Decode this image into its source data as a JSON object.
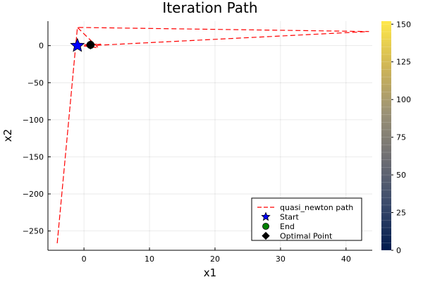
{
  "chart_data": {
    "type": "line",
    "title": "Iteration Path",
    "xlabel": "x1",
    "ylabel": "x2",
    "xlim": [
      -5.5,
      44
    ],
    "ylim": [
      -276,
      33
    ],
    "xticks": [
      0,
      10,
      20,
      30,
      40
    ],
    "yticks": [
      0,
      -50,
      -100,
      -150,
      -200,
      -250
    ],
    "grid": true,
    "legend_position": "bottom-right",
    "series": [
      {
        "name": "quasi_newton path",
        "style": "dashed",
        "color": "#ff0000",
        "x": [
          -1.2,
          2.2,
          -1.0,
          -4.1,
          -1.0,
          43.5,
          0.0,
          2.6,
          -1.2
        ],
        "y": [
          1.0,
          -3.0,
          24.5,
          -268.0,
          24.5,
          19.0,
          -0.5,
          2.0,
          1.0
        ]
      }
    ],
    "markers": [
      {
        "name": "Start",
        "shape": "star",
        "color": "#0000ff",
        "x": -1.0,
        "y": 0.0
      },
      {
        "name": "End",
        "shape": "circle",
        "color": "#008000",
        "x": 1.0,
        "y": 1.0
      },
      {
        "name": "Optimal Point",
        "shape": "diamond",
        "color": "#000000",
        "x": 1.0,
        "y": 1.0
      }
    ],
    "colorbar": {
      "ticks": [
        0,
        25,
        50,
        75,
        100,
        125,
        150
      ],
      "range": [
        0,
        152
      ],
      "colors": [
        "#001a4d",
        "#3a4a6b",
        "#6e6e73",
        "#9b9276",
        "#cfb556",
        "#ffe84a"
      ]
    }
  }
}
